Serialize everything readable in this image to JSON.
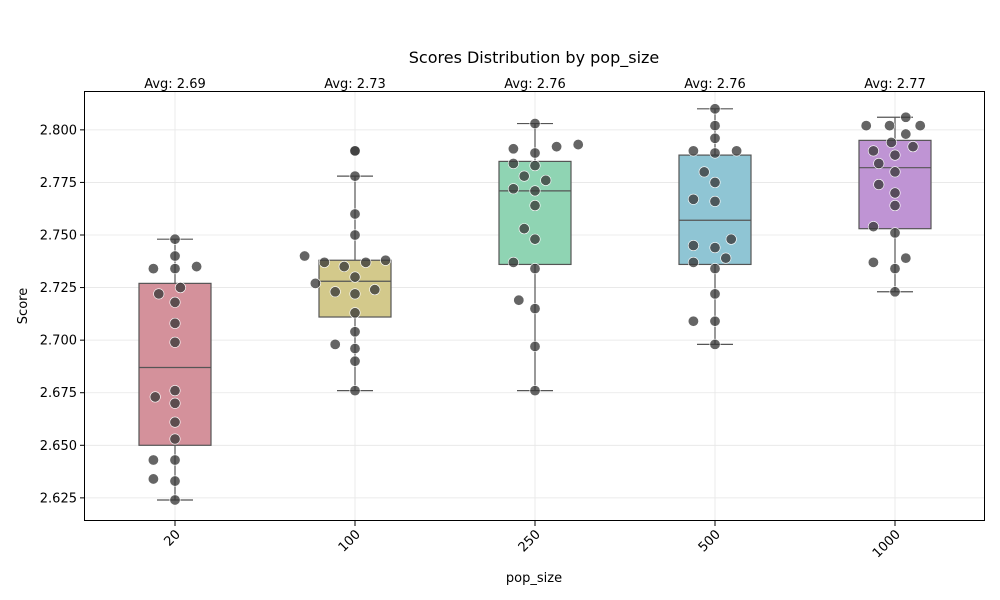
{
  "chart_data": {
    "type": "box",
    "title": "Scores Distribution by pop_size",
    "xlabel": "pop_size",
    "ylabel": "Score",
    "categories": [
      "20",
      "100",
      "250",
      "500",
      "1000"
    ],
    "ylim": [
      2.614,
      2.818
    ],
    "yticks": [
      2.625,
      2.65,
      2.675,
      2.7,
      2.725,
      2.75,
      2.775,
      2.8
    ],
    "ytick_labels": [
      "2.625",
      "2.650",
      "2.675",
      "2.700",
      "2.725",
      "2.750",
      "2.775",
      "2.800"
    ],
    "grid": true,
    "avg_labels": [
      "Avg: 2.69",
      "Avg: 2.73",
      "Avg: 2.76",
      "Avg: 2.76",
      "Avg: 2.77"
    ],
    "colors": [
      "#d4919b",
      "#d3c98b",
      "#8fd4b3",
      "#8fc5d4",
      "#bf94d4"
    ],
    "point_color": "#3a3a3a",
    "boxes": [
      {
        "q1": 2.65,
        "median": 2.687,
        "q3": 2.727,
        "whisker_low": 2.624,
        "whisker_high": 2.748
      },
      {
        "q1": 2.711,
        "median": 2.728,
        "q3": 2.738,
        "whisker_low": 2.676,
        "whisker_high": 2.778
      },
      {
        "q1": 2.736,
        "median": 2.771,
        "q3": 2.785,
        "whisker_low": 2.676,
        "whisker_high": 2.803
      },
      {
        "q1": 2.736,
        "median": 2.757,
        "q3": 2.788,
        "whisker_low": 2.698,
        "whisker_high": 2.81
      },
      {
        "q1": 2.753,
        "median": 2.782,
        "q3": 2.795,
        "whisker_low": 2.723,
        "whisker_high": 2.806
      }
    ],
    "points": [
      [
        [
          0,
          2.748
        ],
        [
          0,
          2.74
        ],
        [
          -0.12,
          2.734
        ],
        [
          0,
          2.734
        ],
        [
          0.12,
          2.735
        ],
        [
          -0.09,
          2.722
        ],
        [
          0.03,
          2.725
        ],
        [
          0,
          2.718
        ],
        [
          0,
          2.708
        ],
        [
          0,
          2.699
        ],
        [
          0,
          2.676
        ],
        [
          -0.11,
          2.673
        ],
        [
          0,
          2.67
        ],
        [
          0,
          2.661
        ],
        [
          0,
          2.653
        ],
        [
          -0.12,
          2.643
        ],
        [
          0,
          2.643
        ],
        [
          -0.12,
          2.634
        ],
        [
          0,
          2.633
        ],
        [
          0,
          2.624
        ]
      ],
      [
        [
          0,
          2.79
        ],
        [
          0,
          2.79
        ],
        [
          0,
          2.778
        ],
        [
          0,
          2.76
        ],
        [
          0,
          2.75
        ],
        [
          -0.28,
          2.74
        ],
        [
          -0.17,
          2.737
        ],
        [
          -0.06,
          2.735
        ],
        [
          0.06,
          2.737
        ],
        [
          0.17,
          2.738
        ],
        [
          0,
          2.73
        ],
        [
          -0.22,
          2.727
        ],
        [
          -0.11,
          2.723
        ],
        [
          0,
          2.722
        ],
        [
          0.11,
          2.724
        ],
        [
          0,
          2.713
        ],
        [
          0,
          2.704
        ],
        [
          -0.11,
          2.698
        ],
        [
          0,
          2.696
        ],
        [
          0,
          2.69
        ],
        [
          0,
          2.676
        ]
      ],
      [
        [
          0,
          2.803
        ],
        [
          -0.12,
          2.791
        ],
        [
          0.12,
          2.792
        ],
        [
          0.24,
          2.793
        ],
        [
          0,
          2.789
        ],
        [
          -0.12,
          2.784
        ],
        [
          0,
          2.783
        ],
        [
          -0.06,
          2.778
        ],
        [
          0.06,
          2.776
        ],
        [
          -0.12,
          2.772
        ],
        [
          0,
          2.771
        ],
        [
          0,
          2.764
        ],
        [
          -0.06,
          2.753
        ],
        [
          0,
          2.748
        ],
        [
          -0.12,
          2.737
        ],
        [
          0,
          2.734
        ],
        [
          -0.09,
          2.719
        ],
        [
          0,
          2.715
        ],
        [
          0,
          2.697
        ],
        [
          0,
          2.676
        ]
      ],
      [
        [
          0,
          2.81
        ],
        [
          0,
          2.802
        ],
        [
          0,
          2.796
        ],
        [
          -0.12,
          2.79
        ],
        [
          0,
          2.789
        ],
        [
          0.12,
          2.79
        ],
        [
          -0.06,
          2.78
        ],
        [
          0,
          2.775
        ],
        [
          -0.12,
          2.767
        ],
        [
          0,
          2.766
        ],
        [
          -0.12,
          2.745
        ],
        [
          0,
          2.744
        ],
        [
          0.09,
          2.748
        ],
        [
          -0.12,
          2.737
        ],
        [
          0.06,
          2.739
        ],
        [
          0,
          2.734
        ],
        [
          0,
          2.722
        ],
        [
          -0.12,
          2.709
        ],
        [
          0,
          2.709
        ],
        [
          0,
          2.698
        ]
      ],
      [
        [
          0.06,
          2.806
        ],
        [
          -0.16,
          2.802
        ],
        [
          -0.03,
          2.802
        ],
        [
          0.14,
          2.802
        ],
        [
          0.06,
          2.798
        ],
        [
          -0.02,
          2.794
        ],
        [
          0.1,
          2.792
        ],
        [
          -0.12,
          2.79
        ],
        [
          0,
          2.788
        ],
        [
          -0.09,
          2.784
        ],
        [
          0,
          2.78
        ],
        [
          -0.09,
          2.774
        ],
        [
          0,
          2.77
        ],
        [
          0,
          2.764
        ],
        [
          -0.12,
          2.754
        ],
        [
          0,
          2.751
        ],
        [
          -0.12,
          2.737
        ],
        [
          0.06,
          2.739
        ],
        [
          0,
          2.734
        ],
        [
          0,
          2.723
        ]
      ]
    ]
  }
}
